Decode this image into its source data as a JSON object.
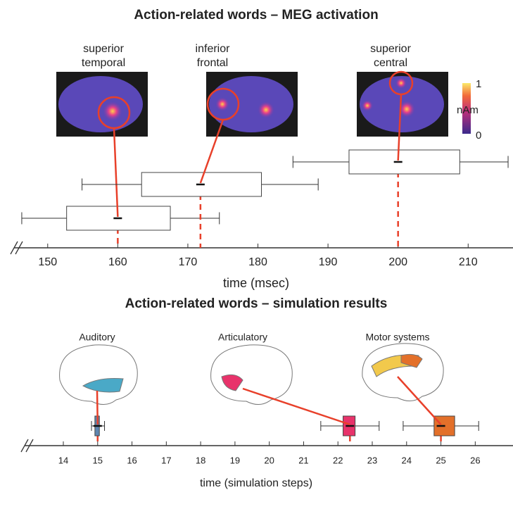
{
  "chart_data": [
    {
      "type": "box",
      "title": "Action-related words – MEG activation",
      "xlabel": "time (msec)",
      "xlim": [
        144.7,
        216.4
      ],
      "xticks": [
        150,
        160,
        170,
        180,
        190,
        200,
        210
      ],
      "colorbar": {
        "ticks": [
          0,
          1
        ],
        "label": "nAm"
      },
      "series": [
        {
          "label": [
            "superior",
            "temporal"
          ],
          "color": "#ffffff",
          "min": 146.3,
          "q1": 152.7,
          "median": 160,
          "q3": 167.5,
          "max": 174.5
        },
        {
          "label": [
            "inferior",
            "frontal"
          ],
          "color": "#ffffff",
          "min": 154.9,
          "q1": 163.4,
          "median": 171.8,
          "q3": 180.5,
          "max": 188.6
        },
        {
          "label": [
            "superior",
            "central"
          ],
          "color": "#ffffff",
          "min": 185,
          "q1": 193,
          "median": 200,
          "q3": 208.8,
          "max": 215.7
        }
      ]
    },
    {
      "type": "box",
      "title": "Action-related words – simulation results",
      "xlabel": "time (simulation steps)",
      "xlim": [
        12.77,
        27.1
      ],
      "xticks": [
        14,
        15,
        16,
        17,
        18,
        19,
        20,
        21,
        22,
        23,
        24,
        25,
        26
      ],
      "series": [
        {
          "label": [
            "Auditory"
          ],
          "color": "#5f86b0",
          "min": 14.82,
          "q1": 14.92,
          "median": 15,
          "q3": 15.05,
          "max": 15.2
        },
        {
          "label": [
            "Articulatory"
          ],
          "color": "#e8336b",
          "min": 21.5,
          "q1": 22.15,
          "median": 22.35,
          "q3": 22.5,
          "max": 23.2
        },
        {
          "label": [
            "Motor systems"
          ],
          "color": "#e3702a",
          "min": 23.9,
          "q1": 24.8,
          "median": 25,
          "q3": 25.4,
          "max": 26.1
        }
      ]
    }
  ]
}
